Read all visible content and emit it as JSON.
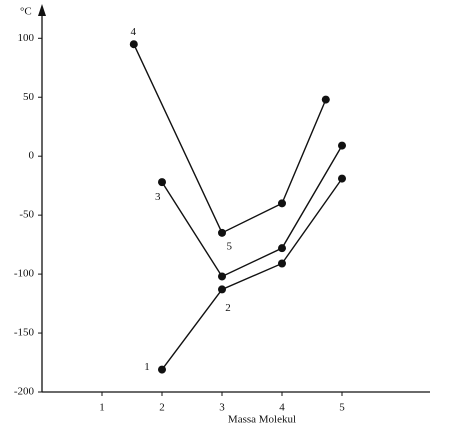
{
  "chart_data": {
    "type": "line",
    "y_label": "°C",
    "x_label": "Massa Molekul",
    "xlim": [
      0,
      6.4
    ],
    "xticks": [
      1,
      2,
      3,
      4,
      5
    ],
    "ylim": [
      -200,
      124
    ],
    "yticks": [
      -200,
      -150,
      -100,
      -50,
      0,
      50,
      100
    ],
    "series": [
      {
        "color": "#111111",
        "x": [
          1.53,
          3,
          4,
          4.73
        ],
        "values": [
          95,
          -65,
          -40,
          48
        ]
      },
      {
        "color": "#111111",
        "x": [
          2,
          3,
          4,
          5
        ],
        "values": [
          -22,
          -102,
          -78,
          9
        ]
      },
      {
        "color": "#111111",
        "x": [
          2,
          3,
          4,
          5
        ],
        "values": [
          -181,
          -113,
          -91,
          -19
        ]
      }
    ],
    "annotations": [
      {
        "text": "4",
        "x": 1.52,
        "y": 105
      },
      {
        "text": "3",
        "x": 1.93,
        "y": -35
      },
      {
        "text": "5",
        "x": 3.12,
        "y": -77
      },
      {
        "text": "2",
        "x": 3.1,
        "y": -129
      },
      {
        "text": "1",
        "x": 1.75,
        "y": -179
      }
    ]
  }
}
